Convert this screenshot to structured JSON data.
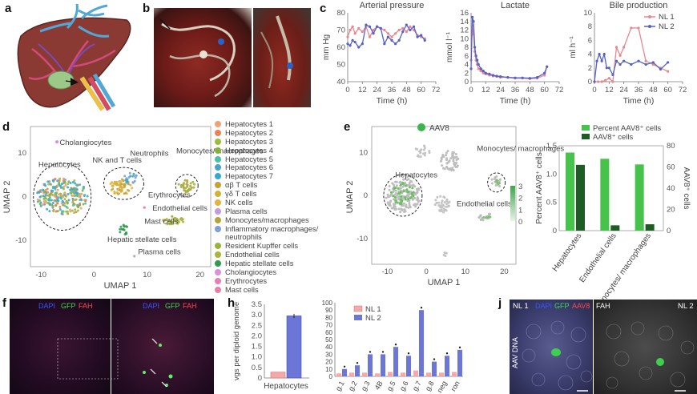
{
  "panels": {
    "a": "a",
    "b": "b",
    "c": "c",
    "d": "d",
    "e": "e",
    "f": "f",
    "h": "h",
    "j": "j"
  },
  "panel_c": {
    "titles": [
      "Arterial pressure",
      "Lactate",
      "Bile production"
    ],
    "ylabels": [
      "mm Hg",
      "mmol l⁻¹",
      "ml h⁻¹"
    ],
    "xlabel": "Time (h)",
    "xticks": [
      "0",
      "12",
      "24",
      "36",
      "48",
      "60",
      "72"
    ],
    "legend": [
      "NL 1",
      "NL 2"
    ],
    "colors": {
      "nl1": "#e5898f",
      "nl2": "#5561c9"
    }
  },
  "panel_d": {
    "xlabel": "UMAP 1",
    "ylabel": "UMAP 2",
    "xticks": [
      "-10",
      "0",
      "10",
      "20"
    ],
    "yticks": [
      "10",
      "0",
      "-10"
    ],
    "labels": {
      "cholangiocytes": "Cholangiocytes",
      "hepatocytes": "Hepatocytes",
      "nkt": "NK and T cells",
      "neutrophils": "Neutrophils",
      "mono": "Monocytes/ macrophages",
      "ery": "Erythrocytes",
      "endo": "Endothelial cells",
      "mast": "Mast cells",
      "stellate": "Hepatic stellate cells",
      "plasma": "Plasma cells"
    },
    "legend": [
      {
        "label": "Hepatocytes 1",
        "color": "#f2a07a"
      },
      {
        "label": "Hepatocytes 2",
        "color": "#e98257"
      },
      {
        "label": "Hepatocytes 3",
        "color": "#9bbd3b"
      },
      {
        "label": "Hepatocytes 4",
        "color": "#84b13d"
      },
      {
        "label": "Hepatocytes 5",
        "color": "#4cbfa6"
      },
      {
        "label": "Hepatocytes 6",
        "color": "#43a6c9"
      },
      {
        "label": "Hepatocytes 7",
        "color": "#35a7d6"
      },
      {
        "label": "αβ T cells",
        "color": "#c6a13a"
      },
      {
        "label": "γδ T cells",
        "color": "#d2b23b"
      },
      {
        "label": "NK cells",
        "color": "#e6b13f"
      },
      {
        "label": "Plasma cells",
        "color": "#c79bd6"
      },
      {
        "label": "Monocytes/macrophages",
        "color": "#b7a23b"
      },
      {
        "label": "Inflammatory macrophages/ neutrophils",
        "color": "#7f9fd6"
      },
      {
        "label": "Resident Kupffer cells",
        "color": "#9bb33b"
      },
      {
        "label": "Endothelial cells",
        "color": "#a9b43a"
      },
      {
        "label": "Hepatic stellate cells",
        "color": "#2e9c4c"
      },
      {
        "label": "Cholangiocytes",
        "color": "#d98fd9"
      },
      {
        "label": "Erythrocytes",
        "color": "#e57fb8"
      },
      {
        "label": "Mast cells",
        "color": "#e77fa7"
      }
    ]
  },
  "panel_e": {
    "key": "AAV8",
    "xlabel": "UMAP 1",
    "ylabel": "UMAP 2",
    "xticks": [
      "-10",
      "0",
      "10",
      "20"
    ],
    "yticks": [
      "10",
      "0",
      "-10"
    ],
    "labels": {
      "hep": "Hepatocytes",
      "mono": "Monocytes/ macrophages",
      "endo": "Endothelial cells"
    },
    "colorbar": [
      "3",
      "2",
      "1",
      "0"
    ],
    "bar_legend": [
      "Percent AAV8⁺ cells",
      "AAV8⁺ cells"
    ],
    "bar_ylabel_left": "Percent AAV8⁺ cells",
    "bar_ylabel_right": "AAV8⁺ cells",
    "bar_yticks_left": [
      "1.5",
      "1.0",
      "0.5",
      "0"
    ],
    "bar_yticks_right": [
      "80",
      "60",
      "40",
      "20",
      "0"
    ],
    "bar_categories": [
      "Hepatocytes",
      "Endothelial cells",
      "Monocytes/ macrophages"
    ]
  },
  "panel_f": {
    "channels": [
      "DAPI",
      "GFP",
      "FAH"
    ]
  },
  "panel_h": {
    "ylabel": "vgs per diploid genome",
    "yticks": [
      "3.5",
      "3.0",
      "2.5",
      "2.0",
      "1.5",
      "1.0",
      "0.5",
      "0"
    ],
    "category": "Hepatocytes",
    "legend": [
      "NL 1",
      "NL 2"
    ],
    "right_yticks": [
      "100",
      "90",
      "80",
      "70",
      "60",
      "50",
      "40",
      "30",
      "20",
      "10",
      "0"
    ],
    "right_xticks": [
      "g.1",
      "g.2",
      "g.3",
      "4B",
      "g.5",
      "g.6",
      "g.7",
      "g.8",
      "neg",
      "ron"
    ]
  },
  "panel_j": {
    "left_tag": "NL 1",
    "right_tag": "NL 2",
    "channels": [
      "DAPI",
      "GFP",
      "AAV8",
      "FAH"
    ],
    "side": "AAV DNA"
  },
  "chart_data": [
    {
      "type": "line",
      "title": "Arterial pressure",
      "xlabel": "Time (h)",
      "ylabel": "mm Hg",
      "xlim": [
        0,
        72
      ],
      "ylim": [
        40,
        80
      ],
      "series": [
        {
          "name": "NL 1",
          "x": [
            0,
            2,
            4,
            6,
            9,
            12,
            15,
            18,
            21,
            24,
            27,
            30,
            33,
            36,
            39,
            42,
            45,
            48,
            51,
            54,
            57,
            60,
            63
          ],
          "values": [
            66,
            70,
            72,
            68,
            71,
            69,
            72,
            66,
            70,
            72,
            71,
            70,
            68,
            66,
            68,
            70,
            71,
            69,
            72,
            70,
            67,
            66,
            65
          ]
        },
        {
          "name": "NL 2",
          "x": [
            0,
            2,
            4,
            6,
            9,
            12,
            15,
            18,
            21,
            24,
            27,
            30,
            33,
            36,
            39,
            42,
            45,
            48,
            51,
            54,
            57,
            60,
            63
          ],
          "values": [
            62,
            61,
            64,
            63,
            60,
            62,
            73,
            72,
            68,
            72,
            71,
            62,
            66,
            64,
            62,
            64,
            69,
            73,
            70,
            72,
            66,
            67,
            64
          ]
        }
      ]
    },
    {
      "type": "line",
      "title": "Lactate",
      "xlabel": "Time (h)",
      "ylabel": "mmol l⁻¹",
      "xlim": [
        0,
        72
      ],
      "ylim": [
        0,
        16
      ],
      "series": [
        {
          "name": "NL 1",
          "x": [
            0,
            1,
            2,
            3,
            4,
            5,
            6,
            8,
            10,
            12,
            15,
            18,
            21,
            24,
            30,
            36,
            42,
            48,
            54,
            60,
            62
          ],
          "values": [
            5,
            13,
            11,
            7,
            5,
            4,
            3,
            2.5,
            2,
            1.8,
            1.5,
            1.3,
            1.2,
            1,
            1,
            0.8,
            0.8,
            0.7,
            0.8,
            1.5,
            3.5
          ]
        },
        {
          "name": "NL 2",
          "x": [
            0,
            1,
            2,
            3,
            4,
            5,
            6,
            8,
            10,
            12,
            15,
            18,
            21,
            24,
            30,
            36,
            42,
            48,
            54,
            60,
            62
          ],
          "values": [
            3,
            15,
            14,
            8,
            6,
            5,
            4,
            3,
            2.5,
            2,
            1.8,
            1.5,
            1.3,
            1.2,
            1,
            0.9,
            0.9,
            0.8,
            1,
            2,
            3.5
          ]
        }
      ]
    },
    {
      "type": "line",
      "title": "Bile production",
      "xlabel": "Time (h)",
      "ylabel": "ml h⁻¹",
      "xlim": [
        0,
        72
      ],
      "ylim": [
        0,
        10
      ],
      "series": [
        {
          "name": "NL 1",
          "x": [
            0,
            3,
            6,
            9,
            12,
            15,
            18,
            21,
            24,
            30,
            36,
            42,
            48,
            54,
            60
          ],
          "values": [
            0,
            0,
            0,
            0.2,
            0.5,
            0,
            5,
            3.8,
            5,
            7.8,
            7.8,
            3,
            2.5,
            2,
            1.5
          ]
        },
        {
          "name": "NL 2",
          "x": [
            0,
            2,
            4,
            6,
            8,
            10,
            12,
            15,
            18,
            21,
            24,
            30,
            36,
            42,
            48,
            54,
            60
          ],
          "values": [
            0,
            3,
            4,
            3,
            4,
            2,
            2,
            1,
            3,
            2.5,
            3,
            2.5,
            3,
            2.5,
            2.8,
            1.8,
            2.8
          ]
        }
      ]
    },
    {
      "type": "bar",
      "title": "",
      "categories": [
        "Hepatocytes",
        "Endothelial cells",
        "Monocytes/ macrophages"
      ],
      "series": [
        {
          "name": "Percent AAV8⁺ cells",
          "axis": "left",
          "values": [
            1.38,
            1.27,
            1.17
          ]
        },
        {
          "name": "AAV8⁺ cells",
          "axis": "right",
          "values": [
            62,
            5,
            6
          ]
        }
      ],
      "ylim_left": [
        0,
        1.5
      ],
      "ylim_right": [
        0,
        80
      ]
    },
    {
      "type": "bar",
      "title": "",
      "categories": [
        "Hepatocytes"
      ],
      "ylabel": "vgs per diploid genome",
      "ylim": [
        0,
        3.5
      ],
      "series": [
        {
          "name": "NL 1",
          "values": [
            0.28
          ]
        },
        {
          "name": "NL 2",
          "values": [
            2.95
          ]
        }
      ]
    },
    {
      "type": "bar",
      "title": "",
      "categories": [
        "g.1",
        "g.2",
        "g.3",
        "4B",
        "g.5",
        "g.6",
        "g.7",
        "g.8",
        "neg",
        "ron"
      ],
      "ylim": [
        0,
        100
      ],
      "series": [
        {
          "name": "NL 1",
          "values": [
            4,
            5,
            5,
            4,
            6,
            5,
            8,
            5,
            5,
            6
          ]
        },
        {
          "name": "NL 2",
          "values": [
            10,
            15,
            30,
            30,
            40,
            28,
            90,
            20,
            28,
            36
          ]
        }
      ]
    }
  ]
}
